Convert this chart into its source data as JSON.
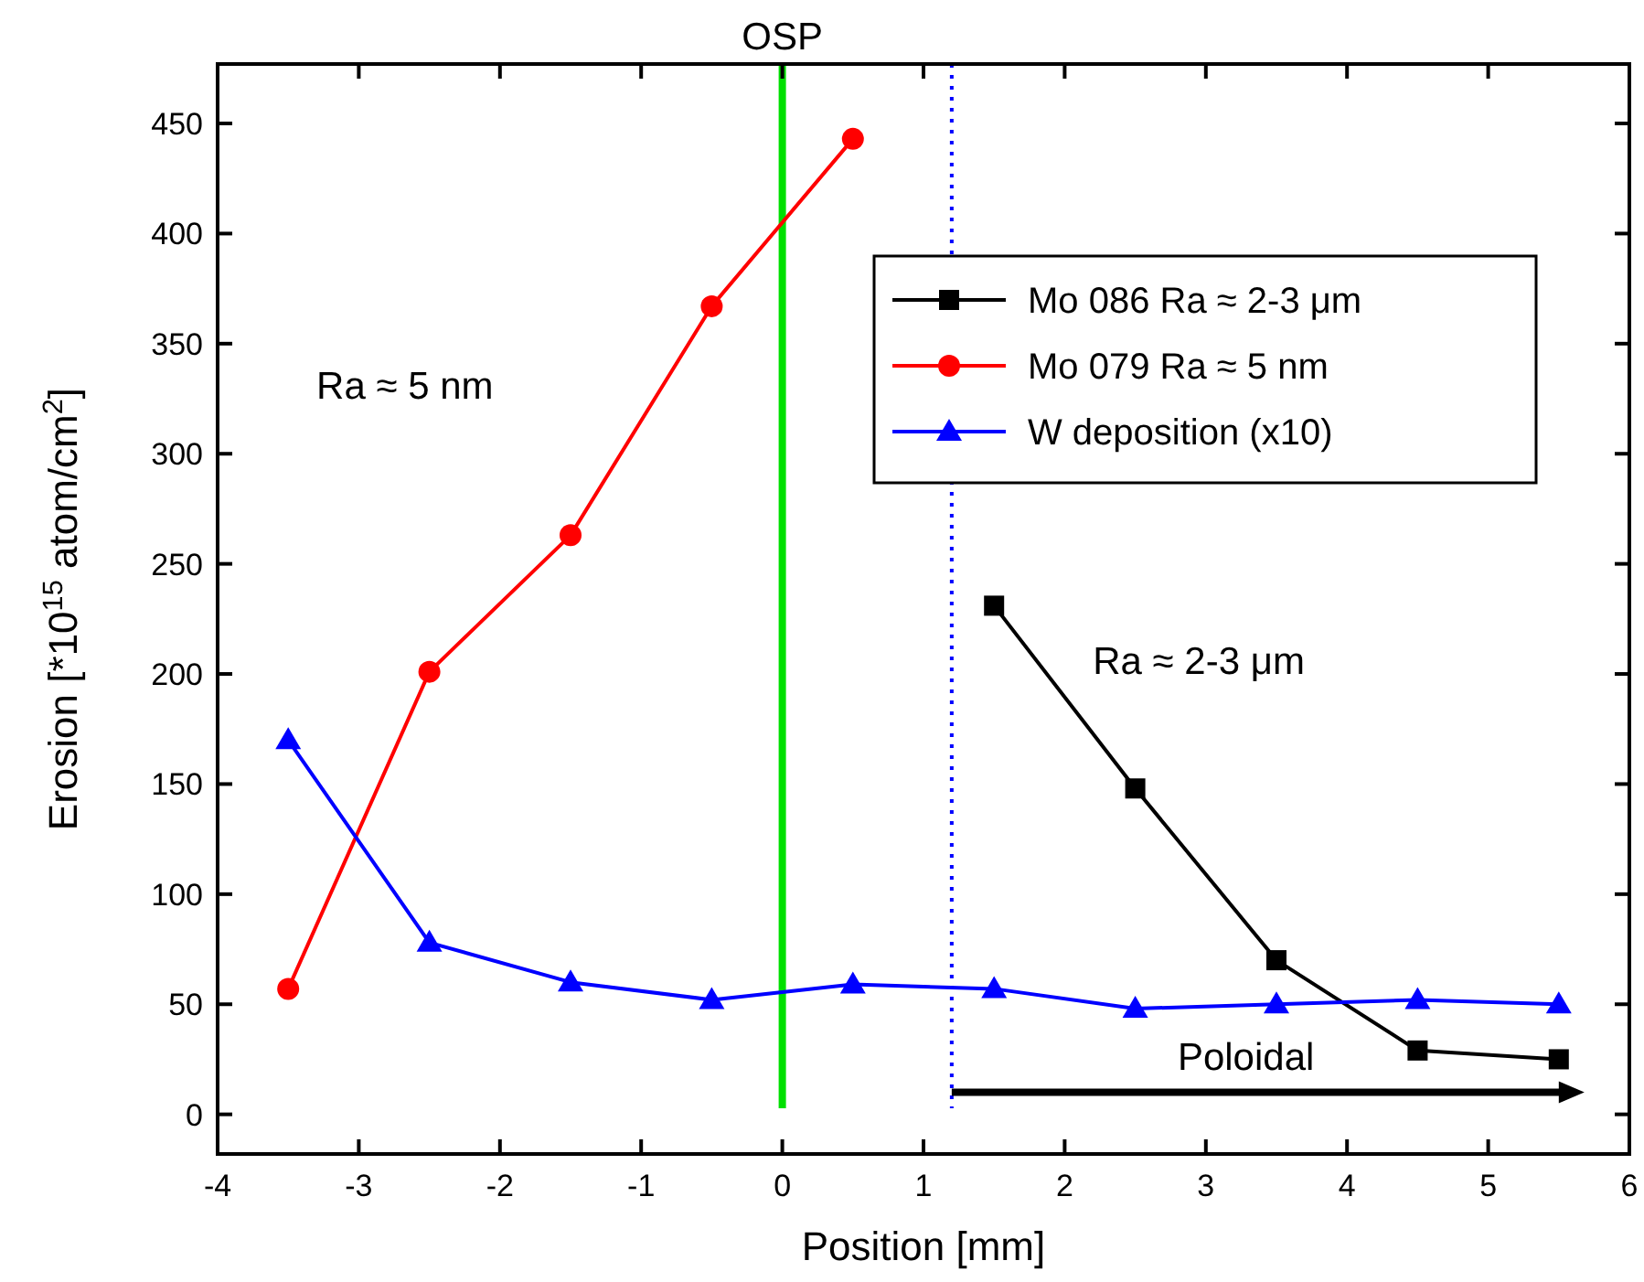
{
  "chart_data": {
    "type": "line",
    "xlabel": "Position [mm]",
    "ylabel": "Erosion [*10$^{15}$ atom/cm$^{2}$]",
    "xlim": [
      -4,
      6
    ],
    "xticks": [
      -4,
      -3,
      -2,
      -1,
      0,
      1,
      2,
      3,
      4,
      5,
      6
    ],
    "ylim": [
      -18,
      477
    ],
    "yticks": [
      0,
      50,
      100,
      150,
      200,
      250,
      300,
      350,
      400,
      450
    ],
    "legend": "top right",
    "grid": false,
    "series": [
      {
        "name": "Mo 086 Ra ≈ 2-3 μm",
        "color": "#000000",
        "marker": "square",
        "x": [
          1.5,
          2.5,
          3.5,
          4.5,
          5.5
        ],
        "values": [
          231,
          148,
          70,
          29,
          25
        ]
      },
      {
        "name": "Mo 079 Ra ≈ 5 nm",
        "color": "#ff0000",
        "marker": "circle",
        "x": [
          -3.5,
          -2.5,
          -1.5,
          -0.5,
          0.5
        ],
        "values": [
          57,
          201,
          263,
          367,
          443
        ]
      },
      {
        "name": "W deposition (x10)",
        "color": "#0000ff",
        "marker": "triangle",
        "x": [
          -3.5,
          -2.5,
          -1.5,
          -0.5,
          0.5,
          1.5,
          2.5,
          3.5,
          4.5,
          5.5
        ],
        "values": [
          170,
          78,
          60,
          52,
          59,
          57,
          48,
          50,
          52,
          50
        ]
      }
    ],
    "ref_lines": [
      {
        "axis": "x",
        "value": 0,
        "label": "OSP",
        "color": "#00e000",
        "line_style": "solid"
      },
      {
        "axis": "x",
        "value": 1.2,
        "color": "#0000ff",
        "line_style": "dotted"
      }
    ],
    "annotations": [
      "Ra ≈ 5 nm",
      "Ra ≈ 2-3 μm",
      "Poloidal"
    ]
  }
}
